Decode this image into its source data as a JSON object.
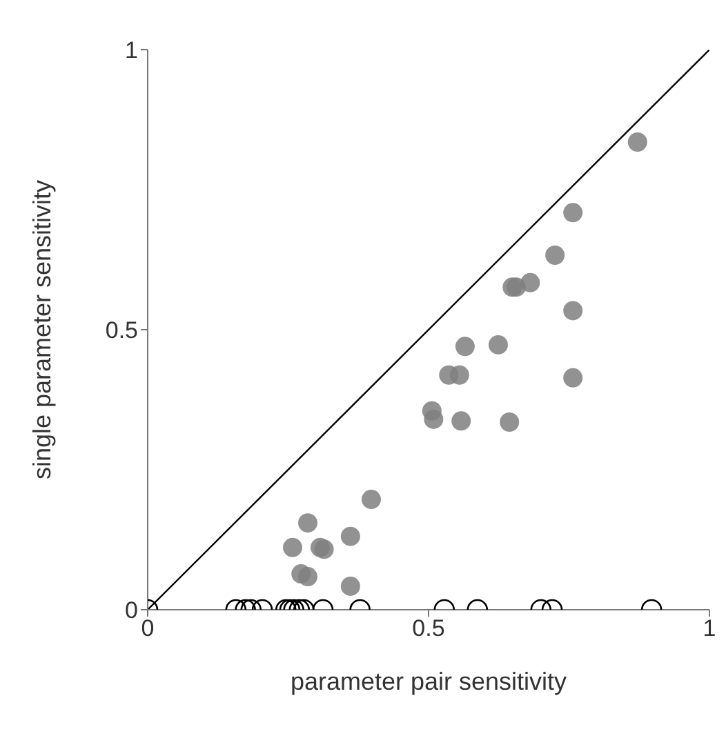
{
  "chart_data": {
    "type": "scatter",
    "xlabel": "parameter pair sensitivity",
    "ylabel": "single parameter sensitivity",
    "xlim": [
      0,
      1
    ],
    "ylim": [
      0,
      1
    ],
    "xticks": [
      0,
      0.5,
      1
    ],
    "yticks": [
      0,
      0.5,
      1
    ],
    "grid": false,
    "legend": false,
    "marker": "circle",
    "series": [
      {
        "type": "line",
        "color": "#000000",
        "x": [
          0,
          1
        ],
        "values": [
          0,
          1
        ],
        "marker": "none",
        "line_style": "solid"
      },
      {
        "color": "#7f7f7f",
        "x": [
          0.872,
          0.757,
          0.725,
          0.649,
          0.656,
          0.681,
          0.757,
          0.565,
          0.624,
          0.536,
          0.555,
          0.757,
          0.506,
          0.509,
          0.558,
          0.644,
          0.398,
          0.285,
          0.258,
          0.307,
          0.314,
          0.361,
          0.273,
          0.285,
          0.361
        ],
        "values": [
          0.835,
          0.709,
          0.633,
          0.576,
          0.576,
          0.584,
          0.534,
          0.47,
          0.473,
          0.419,
          0.419,
          0.414,
          0.355,
          0.34,
          0.337,
          0.335,
          0.197,
          0.155,
          0.111,
          0.111,
          0.108,
          0.131,
          0.064,
          0.059,
          0.042
        ]
      },
      {
        "color": "#000000",
        "x": [
          0,
          0.157,
          0.174,
          0.184,
          0.204,
          0.246,
          0.253,
          0.26,
          0.27,
          0.278,
          0.312,
          0.378,
          0.528,
          0.587,
          0.7,
          0.72,
          0.897
        ],
        "values": [
          0,
          0,
          0,
          0,
          0,
          0,
          0,
          0,
          0,
          0,
          0,
          0,
          0,
          0,
          0,
          0,
          0
        ]
      }
    ]
  }
}
